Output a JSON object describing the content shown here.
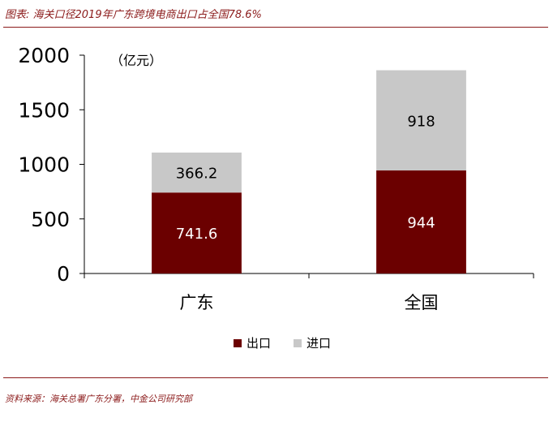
{
  "header": {
    "title": "图表: 海关口径2019年广东跨境电商出口占全国78.6%"
  },
  "footer": {
    "source": "资料来源：海关总署广东分署，中金公司研究部"
  },
  "chart_data": {
    "type": "bar",
    "stacked": true,
    "categories": [
      "广东",
      "全国"
    ],
    "series": [
      {
        "name": "出口",
        "values": [
          741.6,
          944
        ],
        "labels": [
          "741.6",
          "944"
        ],
        "color": "#6b0000"
      },
      {
        "name": "进口",
        "values": [
          366.2,
          918
        ],
        "labels": [
          "366.2",
          "918"
        ],
        "color": "#c8c8c8"
      }
    ],
    "unit_label": "（亿元）",
    "ylim": [
      0,
      2000
    ],
    "yticks": [
      0,
      500,
      1000,
      1500,
      2000
    ],
    "ytick_labels": [
      "0",
      "500",
      "1000",
      "1500",
      "2000"
    ],
    "legend_position": "bottom",
    "grid": false
  }
}
